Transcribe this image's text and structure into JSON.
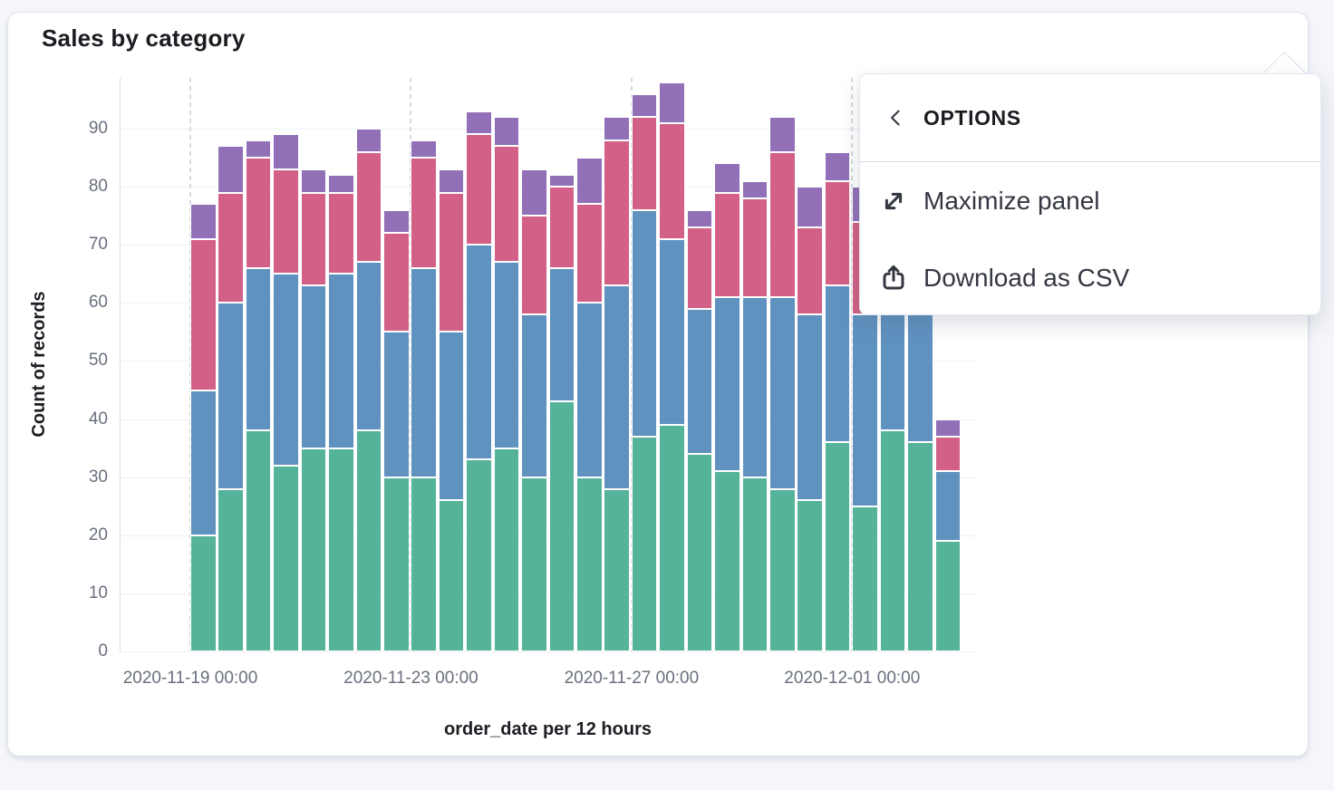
{
  "panel": {
    "title": "Sales by category"
  },
  "popover": {
    "title": "OPTIONS",
    "back_icon": "chevron-left",
    "items": [
      {
        "icon": "maximize-icon",
        "label": "Maximize panel"
      },
      {
        "icon": "download-csv-icon",
        "label": "Download as CSV"
      }
    ]
  },
  "chart_data": {
    "type": "bar",
    "stacked": true,
    "title": "Sales by category",
    "xlabel": "order_date per 12 hours",
    "ylabel": "Count of records",
    "grid": true,
    "legend": "none",
    "yticks": [
      0,
      10,
      20,
      30,
      40,
      50,
      60,
      70,
      80,
      90
    ],
    "ylim": [
      0,
      98.7
    ],
    "x": [
      "2020-11-19 00:00",
      "2020-11-19 12:00",
      "2020-11-20 00:00",
      "2020-11-20 12:00",
      "2020-11-21 00:00",
      "2020-11-21 12:00",
      "2020-11-22 00:00",
      "2020-11-22 12:00",
      "2020-11-23 00:00",
      "2020-11-23 12:00",
      "2020-11-24 00:00",
      "2020-11-24 12:00",
      "2020-11-25 00:00",
      "2020-11-25 12:00",
      "2020-11-26 00:00",
      "2020-11-26 12:00",
      "2020-11-27 00:00",
      "2020-11-27 12:00",
      "2020-11-28 00:00",
      "2020-11-28 12:00",
      "2020-11-29 00:00",
      "2020-11-29 12:00",
      "2020-11-30 00:00",
      "2020-11-30 12:00",
      "2020-12-01 00:00",
      "2020-12-01 12:00",
      "2020-12-02 00:00",
      "2020-12-02 12:00"
    ],
    "x_tick_labels": [
      "2020-11-19 00:00",
      "2020-11-23 00:00",
      "2020-11-27 00:00",
      "2020-12-01 00:00"
    ],
    "x_tick_indices": [
      0,
      8,
      16,
      24
    ],
    "series": [
      {
        "name": "green-series",
        "color": "#54B399",
        "values": [
          20,
          28,
          38,
          32,
          35,
          35,
          38,
          30,
          30,
          26,
          33,
          35,
          30,
          43,
          30,
          28,
          37,
          39,
          34,
          31,
          30,
          28,
          26,
          36,
          25,
          38,
          36,
          19
        ]
      },
      {
        "name": "blue-series",
        "color": "#6092C0",
        "values": [
          25,
          32,
          28,
          33,
          28,
          30,
          29,
          25,
          36,
          29,
          37,
          32,
          28,
          23,
          30,
          35,
          39,
          32,
          25,
          30,
          31,
          33,
          32,
          27,
          33,
          25,
          24,
          12
        ]
      },
      {
        "name": "pink-series",
        "color": "#D36086",
        "values": [
          26,
          19,
          19,
          18,
          16,
          14,
          19,
          17,
          19,
          24,
          19,
          20,
          17,
          14,
          17,
          25,
          16,
          20,
          14,
          18,
          17,
          25,
          15,
          18,
          16,
          12,
          13,
          6
        ]
      },
      {
        "name": "purple-series",
        "color": "#9170B8",
        "values": [
          6,
          8,
          3,
          6,
          4,
          3,
          4,
          4,
          3,
          4,
          4,
          5,
          8,
          2,
          8,
          4,
          4,
          7,
          3,
          5,
          3,
          6,
          7,
          5,
          6,
          5,
          5,
          3
        ]
      }
    ]
  }
}
